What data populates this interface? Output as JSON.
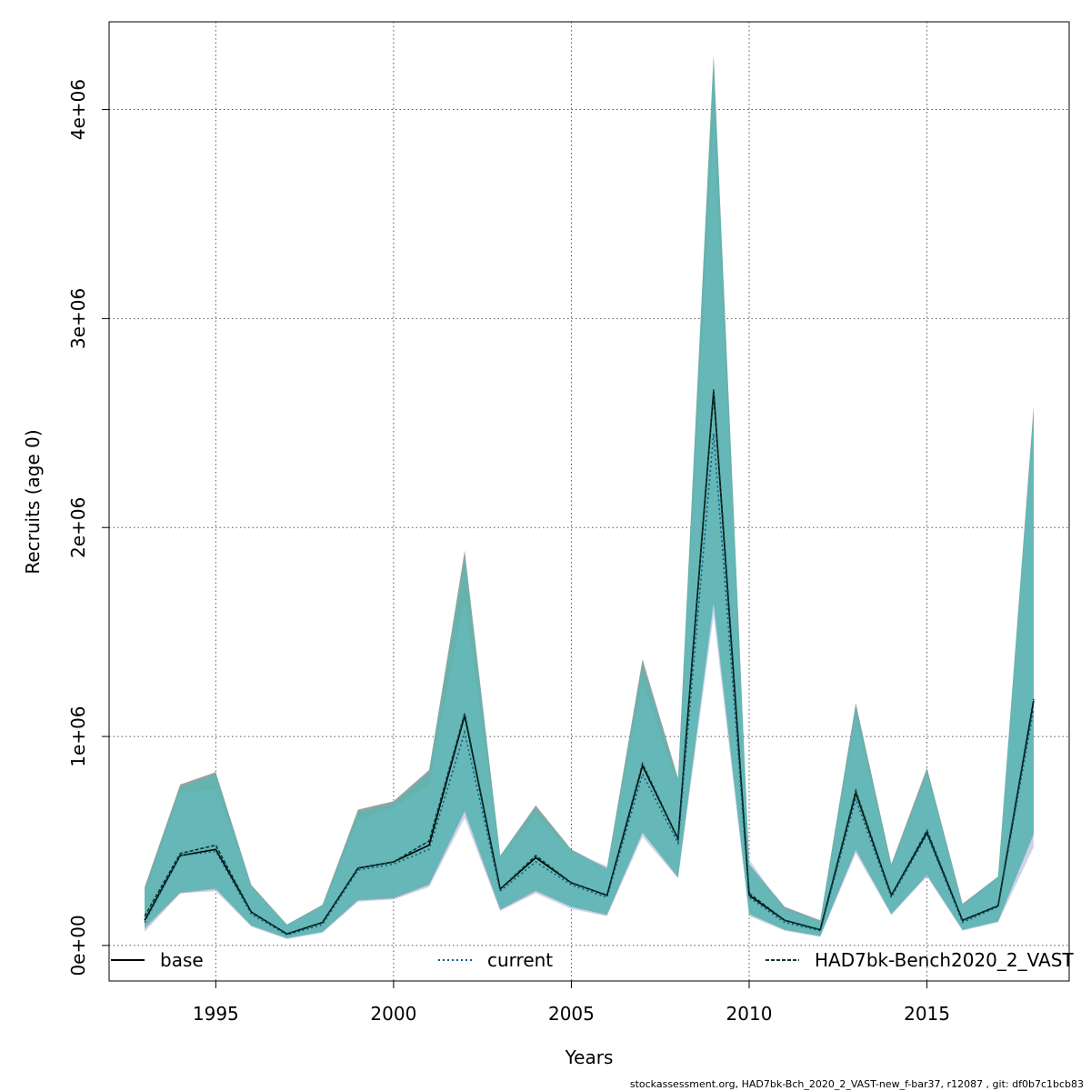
{
  "chart_data": {
    "type": "area",
    "title": "",
    "xlabel": "Years",
    "ylabel": "Recruits (age 0)",
    "xlim": [
      1992,
      2019
    ],
    "ylim": [
      -170000,
      4420000
    ],
    "x_ticks": [
      1995,
      2000,
      2005,
      2010,
      2015
    ],
    "x_tick_labels": [
      "1995",
      "2000",
      "2005",
      "2010",
      "2015"
    ],
    "y_ticks": [
      0,
      1000000,
      2000000,
      3000000,
      4000000
    ],
    "y_tick_labels": [
      "0e+00",
      "1e+06",
      "2e+06",
      "3e+06",
      "4e+06"
    ],
    "grid": true,
    "legend_position": "bottom",
    "x": [
      1993,
      1994,
      1995,
      1996,
      1997,
      1998,
      1999,
      2000,
      2001,
      2002,
      2003,
      2004,
      2005,
      2006,
      2007,
      2008,
      2009,
      2010,
      2011,
      2012,
      2013,
      2014,
      2015,
      2016,
      2017,
      2018
    ],
    "series": [
      {
        "name": "base",
        "color": "#000000",
        "line_style": "solid",
        "band_color": "#7f7f7f",
        "values": [
          120000,
          430000,
          460000,
          160000,
          55000,
          110000,
          370000,
          400000,
          480000,
          1100000,
          270000,
          420000,
          300000,
          240000,
          860000,
          510000,
          2650000,
          240000,
          120000,
          75000,
          730000,
          240000,
          540000,
          120000,
          190000,
          1170000
        ],
        "lower": [
          80000,
          250000,
          270000,
          95000,
          35000,
          65000,
          215000,
          225000,
          290000,
          640000,
          170000,
          260000,
          185000,
          145000,
          540000,
          325000,
          1640000,
          150000,
          75000,
          45000,
          455000,
          150000,
          335000,
          75000,
          115000,
          530000
        ],
        "upper": [
          280000,
          770000,
          830000,
          290000,
          100000,
          195000,
          650000,
          690000,
          840000,
          1890000,
          430000,
          670000,
          460000,
          370000,
          1370000,
          800000,
          4260000,
          390000,
          185000,
          120000,
          1160000,
          390000,
          850000,
          200000,
          330000,
          2580000
        ]
      },
      {
        "name": "current",
        "color": "#0e5a86",
        "line_style": "dotted",
        "band_color": "#9fb2d6",
        "values": [
          110000,
          430000,
          450000,
          150000,
          50000,
          100000,
          360000,
          390000,
          460000,
          1020000,
          260000,
          400000,
          290000,
          230000,
          820000,
          490000,
          2450000,
          230000,
          110000,
          70000,
          700000,
          230000,
          530000,
          110000,
          185000,
          1130000
        ],
        "lower": [
          65000,
          250000,
          260000,
          90000,
          30000,
          60000,
          210000,
          220000,
          280000,
          610000,
          165000,
          250000,
          175000,
          140000,
          520000,
          320000,
          1580000,
          140000,
          70000,
          40000,
          440000,
          145000,
          330000,
          70000,
          110000,
          470000
        ],
        "upper": [
          240000,
          730000,
          750000,
          280000,
          95000,
          185000,
          600000,
          660000,
          770000,
          1660000,
          420000,
          620000,
          450000,
          380000,
          1260000,
          770000,
          3950000,
          410000,
          170000,
          110000,
          1090000,
          370000,
          820000,
          190000,
          320000,
          2520000
        ]
      },
      {
        "name": "HAD7bk-Bench2020_2_VAST",
        "color": "#0b3b33",
        "line_style": "dashed",
        "band_color": "#4fbcb5",
        "values": [
          140000,
          440000,
          480000,
          160000,
          55000,
          110000,
          370000,
          400000,
          500000,
          1110000,
          270000,
          430000,
          300000,
          240000,
          870000,
          510000,
          2660000,
          250000,
          120000,
          75000,
          740000,
          240000,
          550000,
          120000,
          190000,
          1180000
        ],
        "lower": [
          90000,
          255000,
          275000,
          95000,
          35000,
          65000,
          220000,
          230000,
          295000,
          645000,
          175000,
          265000,
          185000,
          150000,
          540000,
          330000,
          1640000,
          150000,
          75000,
          45000,
          460000,
          150000,
          340000,
          75000,
          115000,
          540000
        ],
        "upper": [
          270000,
          760000,
          820000,
          285000,
          100000,
          190000,
          640000,
          680000,
          830000,
          1860000,
          430000,
          660000,
          455000,
          365000,
          1350000,
          790000,
          4250000,
          385000,
          180000,
          115000,
          1150000,
          385000,
          840000,
          195000,
          330000,
          2560000
        ]
      }
    ]
  },
  "footer_text": "stockassessment.org, HAD7bk-Bch_2020_2_VAST-new_f-bar37, r12087 , git: df0b7c1bcb83"
}
